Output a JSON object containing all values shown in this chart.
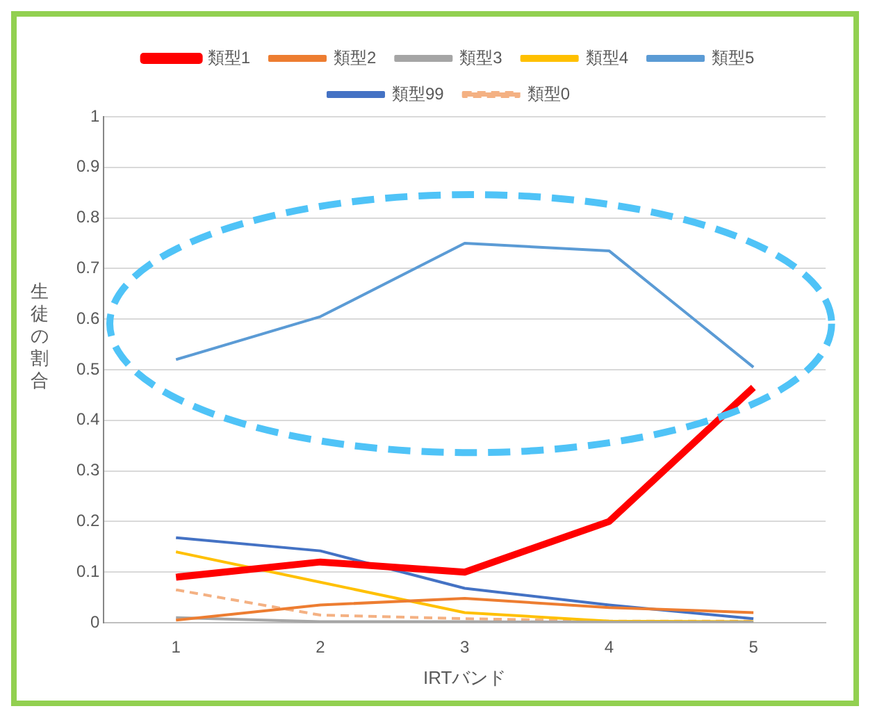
{
  "chart_data": {
    "type": "line",
    "xlabel": "IRTバンド",
    "ylabel": "生徒の割合",
    "categories": [
      "1",
      "2",
      "3",
      "4",
      "5"
    ],
    "series": [
      {
        "name": "類型1",
        "color": "#ff0000",
        "values": [
          0.09,
          0.12,
          0.1,
          0.2,
          0.465
        ]
      },
      {
        "name": "類型2",
        "color": "#ed7d31",
        "values": [
          0.005,
          0.035,
          0.048,
          0.03,
          0.02
        ]
      },
      {
        "name": "類型3",
        "color": "#a5a5a5",
        "values": [
          0.01,
          0.002,
          0.002,
          0.001,
          0.001
        ]
      },
      {
        "name": "類型4",
        "color": "#ffc000",
        "values": [
          0.14,
          0.08,
          0.02,
          0.003,
          0.002
        ]
      },
      {
        "name": "類型5",
        "color": "#5b9bd5",
        "values": [
          0.52,
          0.605,
          0.75,
          0.735,
          0.505
        ]
      },
      {
        "name": "類型99",
        "color": "#4472c4",
        "values": [
          0.168,
          0.142,
          0.068,
          0.035,
          0.008
        ]
      },
      {
        "name": "類型0",
        "color": "#f4b183",
        "values": [
          0.065,
          0.015,
          0.008,
          0.003,
          0.003
        ],
        "line_style": "dashed"
      }
    ],
    "ylim": [
      0,
      1
    ],
    "yticks": [
      0,
      0.1,
      0.2,
      0.3,
      0.4,
      0.5,
      0.6,
      0.7,
      0.8,
      0.9,
      1
    ],
    "grid": "y",
    "legend": "top",
    "marker": "none"
  }
}
